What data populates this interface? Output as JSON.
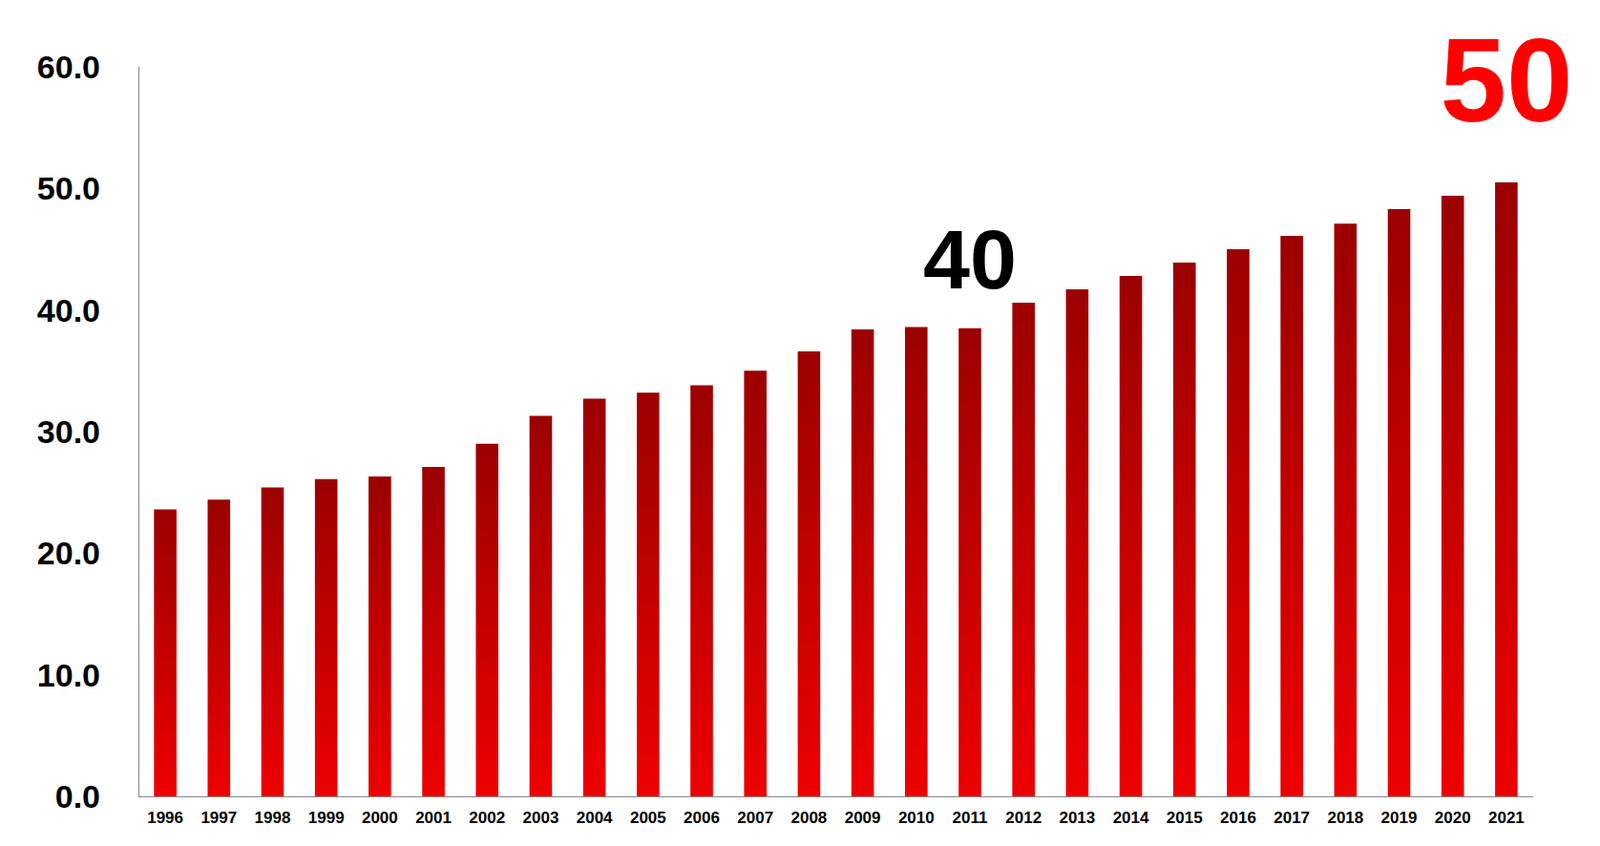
{
  "chart_data": {
    "type": "bar",
    "categories": [
      "1996",
      "1997",
      "1998",
      "1999",
      "2000",
      "2001",
      "2002",
      "2003",
      "2004",
      "2005",
      "2006",
      "2007",
      "2008",
      "2009",
      "2010",
      "2011",
      "2012",
      "2013",
      "2014",
      "2015",
      "2016",
      "2017",
      "2018",
      "2019",
      "2020",
      "2021"
    ],
    "values": [
      23.6,
      24.4,
      25.4,
      26.1,
      26.3,
      27.1,
      29.0,
      31.3,
      32.7,
      33.2,
      33.8,
      35.0,
      36.6,
      38.4,
      38.6,
      38.5,
      40.6,
      41.7,
      42.8,
      43.9,
      45.0,
      46.1,
      47.1,
      48.3,
      49.4,
      50.5
    ],
    "color": "#ee0000",
    "ylim": [
      0,
      60
    ],
    "yticks": [
      {
        "value": 0,
        "label": "0.0"
      },
      {
        "value": 10,
        "label": "10.0"
      },
      {
        "value": 20,
        "label": "20.0"
      },
      {
        "value": 30,
        "label": "30.0"
      },
      {
        "value": 40,
        "label": "40.0"
      },
      {
        "value": 50,
        "label": "50.0"
      },
      {
        "value": 60,
        "label": "60.0"
      }
    ],
    "grid": false,
    "annotations": [
      {
        "text": "40",
        "category": "2011",
        "color": "#000000"
      },
      {
        "text": "50",
        "category": "2021",
        "color": "#ff0000"
      }
    ]
  }
}
